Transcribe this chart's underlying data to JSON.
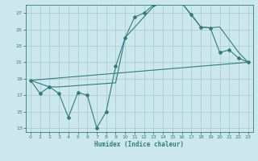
{
  "xlabel": "Humidex (Indice chaleur)",
  "bg_color": "#cce8ec",
  "grid_color": "#aaccd4",
  "line_color": "#2e7e7e",
  "xlim": [
    -0.5,
    23.5
  ],
  "ylim": [
    12.5,
    28.0
  ],
  "xticks": [
    0,
    1,
    2,
    3,
    4,
    5,
    6,
    7,
    8,
    9,
    10,
    11,
    12,
    13,
    14,
    15,
    16,
    17,
    18,
    19,
    20,
    21,
    22,
    23
  ],
  "yticks": [
    13,
    15,
    17,
    19,
    21,
    23,
    25,
    27
  ],
  "line1_x": [
    0,
    1,
    2,
    3,
    4,
    5,
    6,
    7,
    8,
    9,
    10,
    11,
    12,
    13,
    14,
    15,
    16,
    17,
    18,
    19,
    20,
    21,
    22,
    23
  ],
  "line1_y": [
    18.8,
    17.2,
    18.0,
    17.2,
    14.3,
    17.3,
    17.0,
    13.0,
    15.0,
    20.5,
    24.0,
    26.5,
    27.0,
    28.0,
    28.3,
    28.4,
    28.2,
    26.8,
    25.3,
    25.2,
    22.2,
    22.5,
    21.5,
    21.0
  ],
  "line2_x": [
    0,
    2,
    3,
    9,
    10,
    13,
    14,
    15,
    16,
    18,
    19,
    20,
    22,
    23
  ],
  "line2_y": [
    18.8,
    18.0,
    18.0,
    18.5,
    24.0,
    27.8,
    28.3,
    28.4,
    28.2,
    25.3,
    25.2,
    25.3,
    22.2,
    21.0
  ],
  "line3_x": [
    0,
    23
  ],
  "line3_y": [
    18.8,
    21.0
  ]
}
